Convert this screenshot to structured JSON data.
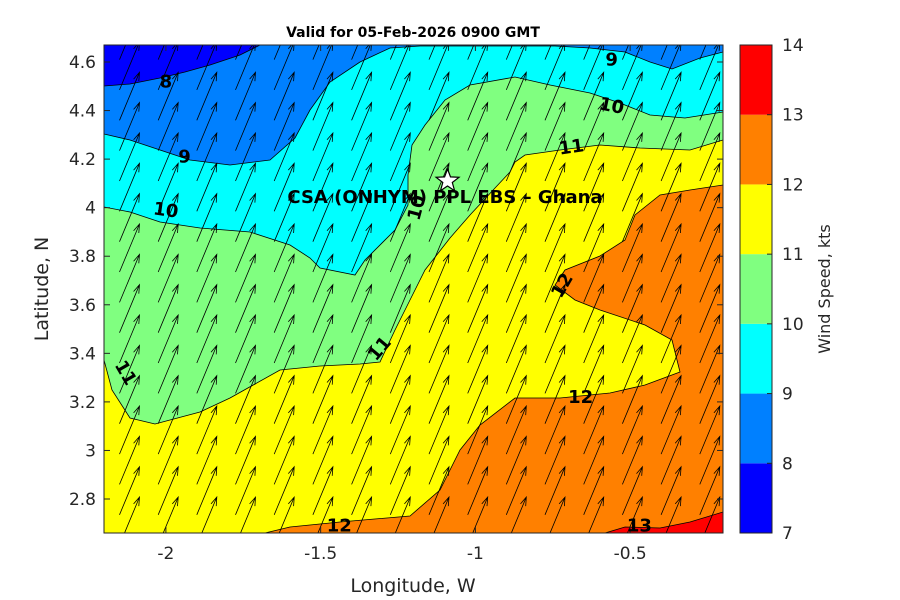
{
  "chart_data": {
    "type": "contourf",
    "title": "Valid for 05-Feb-2026 0900 GMT",
    "xlabel": "Longitude, W",
    "ylabel": "Latitude, N",
    "xlim": [
      -2.2,
      -0.2
    ],
    "ylim": [
      2.66,
      4.67
    ],
    "xticks": [
      -2,
      -1.5,
      -1,
      -0.5
    ],
    "xtick_labels": [
      "-2",
      "-1.5",
      "-1",
      "-0.5"
    ],
    "yticks": [
      2.8,
      3,
      3.2,
      3.4,
      3.6,
      3.8,
      4,
      4.2,
      4.4,
      4.6
    ],
    "ytick_labels": [
      "2.8",
      "3",
      "3.2",
      "3.4",
      "3.6",
      "3.8",
      "4",
      "4.2",
      "4.4",
      "4.6"
    ],
    "colorbar": {
      "label": "Wind Speed, kts",
      "levels": [
        7,
        8,
        9,
        10,
        11,
        12,
        13,
        14
      ],
      "tick_labels": [
        "7",
        "8",
        "9",
        "10",
        "11",
        "12",
        "13",
        "14"
      ],
      "colors": [
        "#0000ff",
        "#0080ff",
        "#00ffff",
        "#80ff80",
        "#ffff00",
        "#ff8000",
        "#ff0000"
      ]
    },
    "wind_direction": "southwesterly (blowing toward NNE)",
    "wind_vector_grid": {
      "lon_step": 0.125,
      "lat_step": 0.125
    },
    "contour_labels": [
      {
        "text": "8",
        "lon": -2.0,
        "lat": 4.52,
        "angle": 0
      },
      {
        "text": "9",
        "lon": -1.94,
        "lat": 4.21,
        "angle": 0
      },
      {
        "text": "9",
        "lon": -0.56,
        "lat": 4.61,
        "angle": 0
      },
      {
        "text": "10",
        "lon": -2.0,
        "lat": 3.99,
        "angle": 8
      },
      {
        "text": "10",
        "lon": -1.19,
        "lat": 4.0,
        "angle": -75
      },
      {
        "text": "10",
        "lon": -0.56,
        "lat": 4.42,
        "angle": 12
      },
      {
        "text": "11",
        "lon": -2.13,
        "lat": 3.32,
        "angle": 60
      },
      {
        "text": "11",
        "lon": -1.31,
        "lat": 3.42,
        "angle": -50
      },
      {
        "text": "11",
        "lon": -0.69,
        "lat": 4.25,
        "angle": -8
      },
      {
        "text": "12",
        "lon": -0.72,
        "lat": 3.68,
        "angle": -60
      },
      {
        "text": "12",
        "lon": -0.66,
        "lat": 3.22,
        "angle": 0
      },
      {
        "text": "12",
        "lon": -1.44,
        "lat": 2.69,
        "angle": 0
      },
      {
        "text": "13",
        "lon": -0.47,
        "lat": 2.69,
        "angle": 0
      }
    ],
    "site": {
      "name": "CSA (ONHYM) PPL EBS  – Ghana",
      "marker": "star-icon",
      "lon": -1.09,
      "lat": 4.11
    }
  },
  "style": {
    "line_color": "#000000",
    "axis_color": "#262626",
    "background": "#ffffff"
  }
}
